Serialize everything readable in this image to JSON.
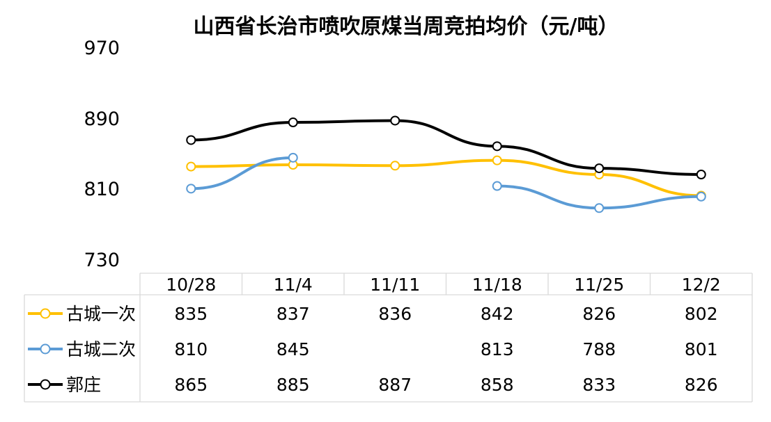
{
  "chart_data": {
    "type": "line",
    "title": "山西省长治市喷吹原煤当周竞拍均价（元/吨）",
    "categories": [
      "10/28",
      "11/4",
      "11/11",
      "11/18",
      "11/25",
      "12/2"
    ],
    "ylim": [
      730,
      970
    ],
    "yticks": [
      "970",
      "890",
      "810",
      "730"
    ],
    "legend_placement": "data-table-left",
    "series": [
      {
        "name": "古城一次",
        "color": "#ffc000",
        "values": [
          835,
          837,
          836,
          842,
          826,
          802
        ],
        "labels": [
          "835",
          "837",
          "836",
          "842",
          "826",
          "802"
        ]
      },
      {
        "name": "古城二次",
        "color": "#5b9bd5",
        "values": [
          810,
          845,
          null,
          813,
          788,
          801
        ],
        "labels": [
          "810",
          "845",
          "",
          "813",
          "788",
          "801"
        ]
      },
      {
        "name": "郭庄",
        "color": "#000000",
        "values": [
          865,
          885,
          887,
          858,
          833,
          826
        ],
        "labels": [
          "865",
          "885",
          "887",
          "858",
          "833",
          "826"
        ]
      }
    ]
  }
}
